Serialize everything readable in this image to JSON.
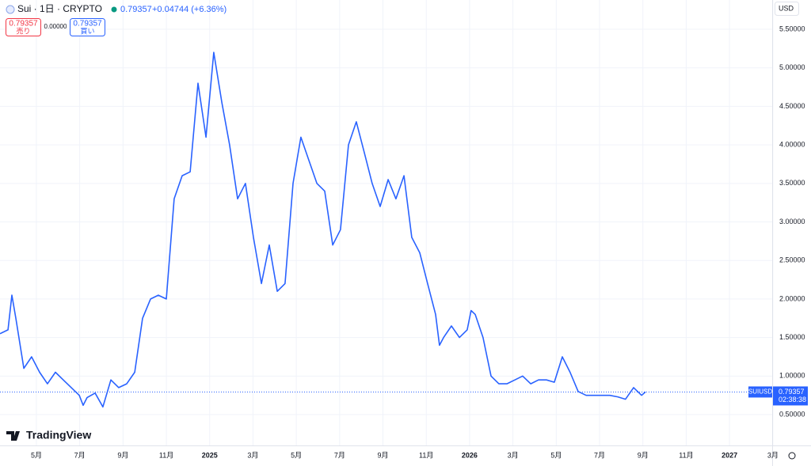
{
  "header": {
    "symbol": "Sui · 1日 · CRYPTO",
    "price": "0.79357",
    "change": "+0.04744 (+6.36%)"
  },
  "order": {
    "sell_price": "0.79357",
    "sell_label": "売り",
    "spread": "0.00000",
    "buy_price": "0.79357",
    "buy_label": "買い"
  },
  "currency": "USD",
  "price_tag": {
    "symbol": "SUIUSD",
    "price": "0.79357",
    "countdown": "02:38:38"
  },
  "brand": "TradingView",
  "chart_data": {
    "type": "line",
    "x": [
      2.32,
      2.69,
      2.87,
      3.05,
      3.42,
      3.78,
      4.15,
      4.51,
      4.88,
      5.24,
      5.61,
      5.98,
      6.16,
      6.34,
      6.71,
      7.07,
      7.44,
      7.8,
      8.17,
      8.54,
      8.9,
      9.27,
      9.63,
      10.0,
      10.36,
      10.73,
      11.1,
      11.46,
      11.83,
      12.19,
      12.56,
      12.92,
      13.29,
      13.65,
      14.02,
      14.39,
      14.75,
      15.12,
      15.48,
      15.85,
      16.21,
      16.58,
      16.95,
      17.31,
      17.68,
      18.04,
      18.41,
      18.77,
      19.14,
      19.5,
      19.87,
      20.24,
      20.6,
      20.97,
      21.33,
      21.7,
      22.06,
      22.43,
      22.61,
      22.8,
      23.16,
      23.53,
      23.89,
      24.07,
      24.26,
      24.62,
      24.99,
      25.35,
      25.72,
      26.09,
      26.45,
      26.82,
      27.18,
      27.55,
      27.91,
      28.28,
      28.64,
      29.01,
      29.38,
      29.74,
      30.11,
      30.47,
      30.84,
      31.2,
      31.57,
      31.94,
      32.12
    ],
    "series": [
      {
        "name": "SUIUSD",
        "color": "#2962ff",
        "values": [
          1.55,
          1.6,
          2.05,
          1.75,
          1.1,
          1.25,
          1.05,
          0.9,
          1.05,
          0.95,
          0.85,
          0.75,
          0.62,
          0.72,
          0.78,
          0.6,
          0.95,
          0.85,
          0.9,
          1.05,
          1.75,
          2.0,
          2.05,
          2.0,
          3.3,
          3.6,
          3.65,
          4.8,
          4.1,
          5.2,
          4.55,
          4.0,
          3.3,
          3.5,
          2.8,
          2.2,
          2.7,
          2.1,
          2.2,
          3.5,
          4.1,
          3.8,
          3.5,
          3.4,
          2.7,
          2.9,
          4.0,
          4.3,
          3.9,
          3.5,
          3.2,
          3.55,
          3.3,
          3.6,
          2.8,
          2.6,
          2.2,
          1.8,
          1.4,
          1.5,
          1.65,
          1.5,
          1.6,
          1.85,
          1.8,
          1.5,
          1.0,
          0.9,
          0.9,
          0.95,
          1.0,
          0.9,
          0.95,
          0.95,
          0.92,
          1.25,
          1.05,
          0.8,
          0.75,
          0.75,
          0.75,
          0.75,
          0.73,
          0.7,
          0.85,
          0.75,
          0.79357
        ]
      }
    ],
    "last_price": 0.79357,
    "xlim": [
      2.32,
      37.97
    ],
    "xticks": [
      {
        "value": 4,
        "label": "5月"
      },
      {
        "value": 6,
        "label": "7月"
      },
      {
        "value": 8,
        "label": "9月"
      },
      {
        "value": 10,
        "label": "11月"
      },
      {
        "value": 12,
        "label": "2025"
      },
      {
        "value": 14,
        "label": "3月"
      },
      {
        "value": 16,
        "label": "5月"
      },
      {
        "value": 18,
        "label": "7月"
      },
      {
        "value": 20,
        "label": "9月"
      },
      {
        "value": 22,
        "label": "11月"
      },
      {
        "value": 24,
        "label": "2026"
      },
      {
        "value": 26,
        "label": "3月"
      },
      {
        "value": 28,
        "label": "5月"
      },
      {
        "value": 30,
        "label": "7月"
      },
      {
        "value": 32,
        "label": "9月"
      },
      {
        "value": 34,
        "label": "11月"
      },
      {
        "value": 36,
        "label": "2027"
      },
      {
        "value": 38,
        "label": "3月"
      }
    ],
    "ylim": [
      0.1,
      5.88
    ],
    "yticks": [
      {
        "value": 0.5,
        "label": "0.50000"
      },
      {
        "value": 1,
        "label": "1.00000"
      },
      {
        "value": 1.5,
        "label": "1.50000"
      },
      {
        "value": 2,
        "label": "2.00000"
      },
      {
        "value": 2.5,
        "label": "2.50000"
      },
      {
        "value": 3,
        "label": "3.00000"
      },
      {
        "value": 3.5,
        "label": "3.50000"
      },
      {
        "value": 4,
        "label": "4.00000"
      },
      {
        "value": 4.5,
        "label": "4.50000"
      },
      {
        "value": 5,
        "label": "5.00000"
      },
      {
        "value": 5.5,
        "label": "5.50000"
      }
    ],
    "grid": true
  }
}
